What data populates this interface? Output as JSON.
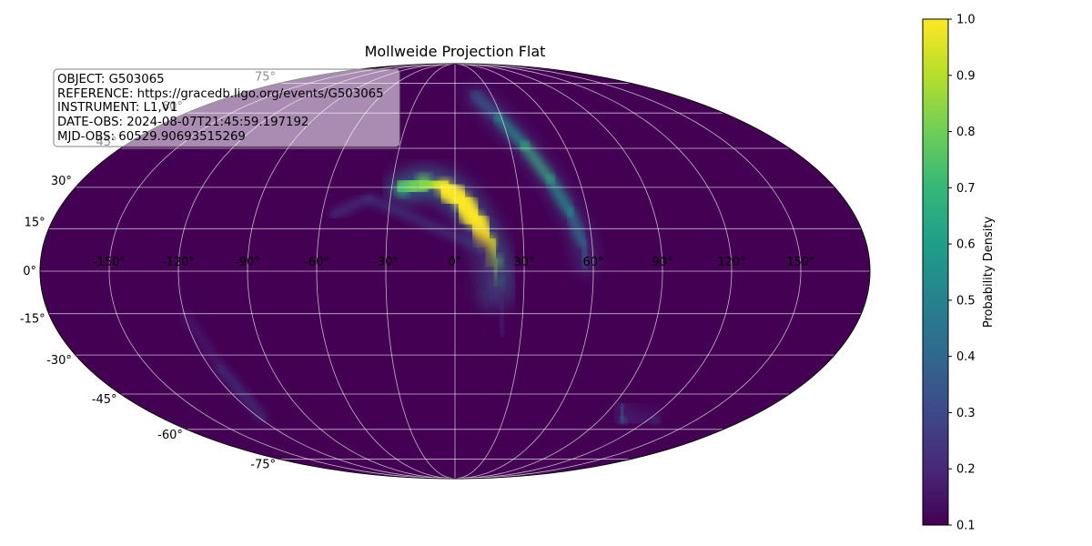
{
  "chart_data": {
    "type": "heatmap",
    "projection": "mollweide",
    "title": "Mollweide Projection Flat",
    "colormap": "viridis",
    "colormap_stops": [
      "#440154",
      "#482878",
      "#3e4989",
      "#31688e",
      "#26828e",
      "#1f9e89",
      "#35b779",
      "#6ece58",
      "#b5de2b",
      "#fde725"
    ],
    "background_value": 0.1,
    "grid": true,
    "longitude_ticks": [
      "-150°",
      "-120°",
      "-90°",
      "-60°",
      "-30°",
      "0°",
      "30°",
      "60°",
      "90°",
      "120°",
      "150°"
    ],
    "latitude_ticks": [
      "75°",
      "60°",
      "45°",
      "30°",
      "15°",
      "0°",
      "-15°",
      "-30°",
      "-45°",
      "-60°",
      "-75°"
    ],
    "colorbar": {
      "label": "Probability Density",
      "range": [
        0.1,
        1.0
      ],
      "ticks": [
        "0.1",
        "0.2",
        "0.3",
        "0.4",
        "0.5",
        "0.6",
        "0.7",
        "0.8",
        "0.9",
        "1.0"
      ]
    },
    "probability_regions": [
      {
        "name": "main-arc",
        "points": [
          {
            "lon": -25,
            "lat": 29,
            "value": 0.7
          },
          {
            "lon": -15,
            "lat": 32,
            "value": 0.85
          },
          {
            "lon": -5,
            "lat": 30,
            "value": 0.95
          },
          {
            "lon": 3,
            "lat": 25,
            "value": 1.0
          },
          {
            "lon": 9,
            "lat": 18,
            "value": 1.0
          },
          {
            "lon": 14,
            "lat": 10,
            "value": 0.95
          },
          {
            "lon": 17,
            "lat": 3,
            "value": 0.85
          },
          {
            "lon": 18,
            "lat": -4,
            "value": 0.65
          },
          {
            "lon": 18,
            "lat": -8,
            "value": 0.45
          }
        ]
      },
      {
        "name": "secondary-arc",
        "points": [
          {
            "lon": 16,
            "lat": 69,
            "value": 0.35
          },
          {
            "lon": 28,
            "lat": 58,
            "value": 0.55
          },
          {
            "lon": 38,
            "lat": 46,
            "value": 0.65
          },
          {
            "lon": 46,
            "lat": 33,
            "value": 0.65
          },
          {
            "lon": 52,
            "lat": 21,
            "value": 0.6
          },
          {
            "lon": 56,
            "lat": 10,
            "value": 0.45
          },
          {
            "lon": 57,
            "lat": 2,
            "value": 0.3
          }
        ]
      },
      {
        "name": "faint-arc",
        "points": [
          {
            "lon": -55,
            "lat": 20,
            "value": 0.25
          },
          {
            "lon": -40,
            "lat": 26,
            "value": 0.25
          },
          {
            "lon": 12,
            "lat": 8,
            "value": 0.25
          },
          {
            "lon": 20,
            "lat": -12,
            "value": 0.2
          },
          {
            "lon": 22,
            "lat": -22,
            "value": 0.18
          }
        ]
      },
      {
        "name": "southern-streak",
        "points": [
          {
            "lon": 95,
            "lat": -50,
            "value": 0.3
          },
          {
            "lon": 105,
            "lat": -56,
            "value": 0.55
          },
          {
            "lon": 125,
            "lat": -56,
            "value": 0.45
          }
        ]
      },
      {
        "name": "western-streak",
        "points": [
          {
            "lon": -120,
            "lat": -15,
            "value": 0.2
          },
          {
            "lon": -115,
            "lat": -35,
            "value": 0.25
          },
          {
            "lon": -118,
            "lat": -55,
            "value": 0.3
          }
        ]
      }
    ]
  },
  "info_box": {
    "lines": [
      "OBJECT: G503065",
      "REFERENCE: https://gracedb.ligo.org/events/G503065",
      "INSTRUMENT: L1,V1",
      "DATE-OBS: 2024-08-07T21:45:59.197192",
      "MJD-OBS: 60529.90693515269"
    ]
  }
}
